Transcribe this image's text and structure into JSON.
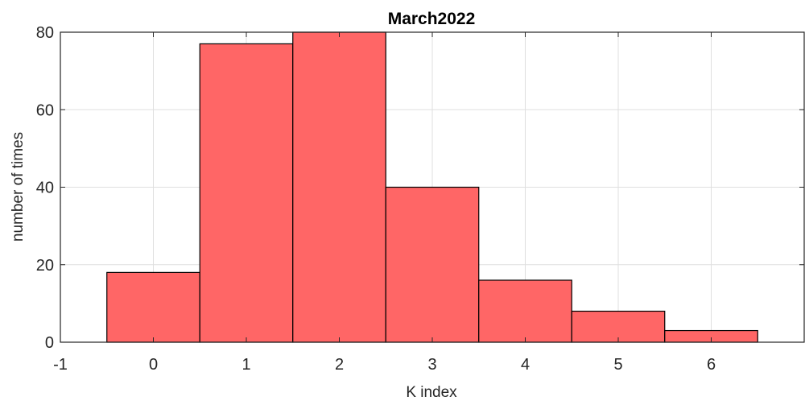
{
  "chart_data": {
    "type": "bar",
    "title": "March2022",
    "xlabel": "K index",
    "ylabel": "number of times",
    "categories": [
      "0",
      "1",
      "2",
      "3",
      "4",
      "5",
      "6"
    ],
    "bins": [
      {
        "center": 0,
        "value": 18
      },
      {
        "center": 1,
        "value": 77
      },
      {
        "center": 2,
        "value": 80
      },
      {
        "center": 3,
        "value": 40
      },
      {
        "center": 4,
        "value": 16
      },
      {
        "center": 5,
        "value": 8
      },
      {
        "center": 6,
        "value": 3
      }
    ],
    "bin_width": 1,
    "xlim": [
      -1,
      7
    ],
    "ylim": [
      0,
      80
    ],
    "xticks": [
      "-1",
      "0",
      "1",
      "2",
      "3",
      "4",
      "5",
      "6"
    ],
    "yticks": [
      "0",
      "20",
      "40",
      "60",
      "80"
    ],
    "grid": true,
    "bar_color": "#ff6666",
    "edge_color": "#000000"
  }
}
